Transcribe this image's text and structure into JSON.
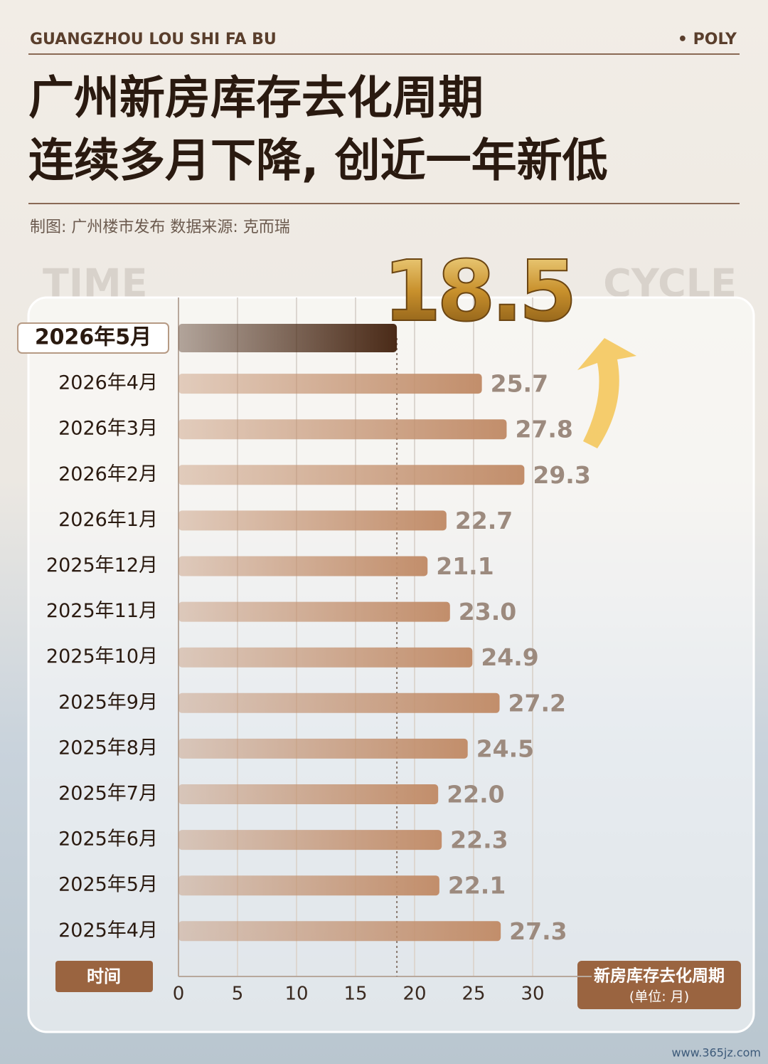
{
  "header": {
    "left": "GUANGZHOU LOU SHI FA BU",
    "right": "• POLY"
  },
  "title": [
    "广州新房库存去化周期",
    "连续多月下降, 创近一年新低"
  ],
  "source": "制图: 广州楼市发布   数据来源: 克而瑞",
  "decor": {
    "left": "TIME",
    "right": "CYCLE"
  },
  "watermark": "www.365jz.com",
  "chart_data": {
    "type": "bar",
    "orientation": "horizontal",
    "categories": [
      "2026年5月",
      "2026年4月",
      "2026年3月",
      "2026年2月",
      "2026年1月",
      "2025年12月",
      "2025年11月",
      "2025年10月",
      "2025年9月",
      "2025年8月",
      "2025年7月",
      "2025年6月",
      "2025年5月",
      "2025年4月"
    ],
    "values": [
      18.5,
      25.7,
      27.8,
      29.3,
      22.7,
      21.1,
      23.0,
      24.9,
      27.2,
      24.5,
      22.0,
      22.3,
      22.1,
      27.3
    ],
    "value_labels": [
      "18.5",
      "25.7",
      "27.8",
      "29.3",
      "22.7",
      "21.1",
      "23.0",
      "24.9",
      "27.2",
      "24.5",
      "22.0",
      "22.3",
      "22.1",
      "27.3"
    ],
    "color": "#c28e6b",
    "highlight_color": "#4a2a17",
    "xlim": [
      0,
      35
    ],
    "xticks": [
      0,
      5,
      10,
      15,
      20,
      25,
      30
    ],
    "grid": true,
    "y_label": "时间",
    "x_label": "新房库存去化周期",
    "x_unit": "(单位: 月)"
  }
}
